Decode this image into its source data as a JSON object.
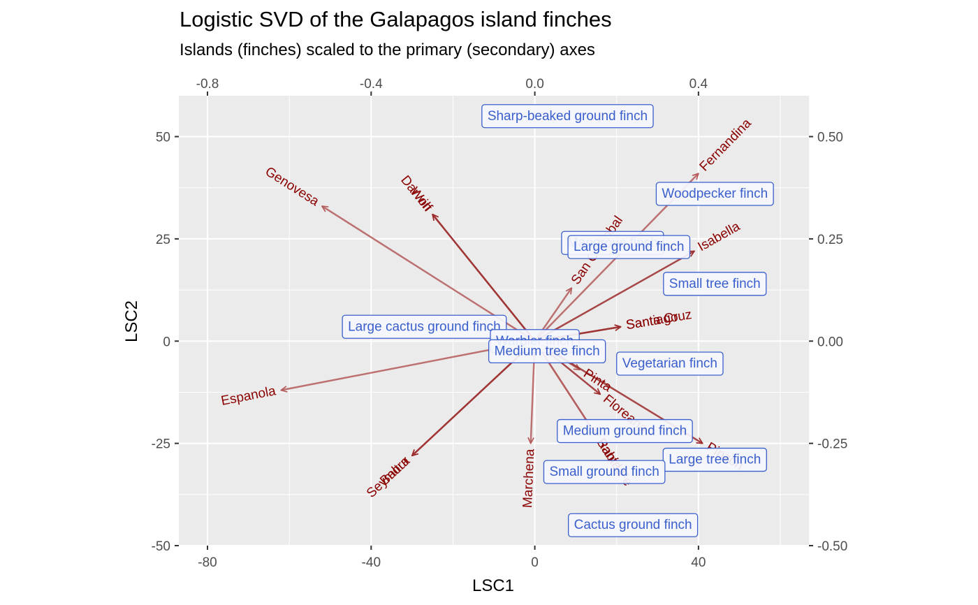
{
  "chart_data": {
    "type": "scatter",
    "title": "Logistic SVD of the Galapagos island finches",
    "subtitle": "Islands (finches) scaled to the primary (secondary) axes",
    "xlabel": "LSC1",
    "ylabel": "LSC2",
    "xlim": [
      -87,
      67
    ],
    "ylim": [
      -50,
      60
    ],
    "x_ticks": [
      "-80",
      "-40",
      "0",
      "40"
    ],
    "y_ticks": [
      "-50",
      "-25",
      "0",
      "25",
      "50"
    ],
    "x2_ticks": [
      "-0.8",
      "-0.4",
      "0.0",
      "0.4"
    ],
    "y2_ticks": [
      "-0.50",
      "-0.25",
      "0.00",
      "0.25",
      "0.50"
    ],
    "grid": true,
    "islands": [
      {
        "name": "Fernandina",
        "x": 40,
        "y": 41
      },
      {
        "name": "Isabella",
        "x": 39,
        "y": 22
      },
      {
        "name": "San Cristobal",
        "x": 9,
        "y": 13
      },
      {
        "name": "Santiago",
        "x": 21,
        "y": 3.5
      },
      {
        "name": "Santa Cruz",
        "x": 21,
        "y": 3.5
      },
      {
        "name": "Genovesa",
        "x": -52,
        "y": 33
      },
      {
        "name": "Darwin",
        "x": -25,
        "y": 31
      },
      {
        "name": "Wolf",
        "x": -25,
        "y": 31
      },
      {
        "name": "Espanola",
        "x": -62,
        "y": -12
      },
      {
        "name": "Baltra",
        "x": -30,
        "y": -28
      },
      {
        "name": "Seymour",
        "x": -30,
        "y": -28
      },
      {
        "name": "Marchena",
        "x": -1,
        "y": -25
      },
      {
        "name": "Pinta",
        "x": 11,
        "y": -7
      },
      {
        "name": "Floreana",
        "x": 16,
        "y": -13
      },
      {
        "name": "Rabida",
        "x": 15,
        "y": -23
      },
      {
        "name": "Santa Fe",
        "x": 15,
        "y": -23
      },
      {
        "name": "Pinzon",
        "x": 41,
        "y": -25
      }
    ],
    "finches": [
      {
        "name": "Sharp-beaked ground finch",
        "x": 8,
        "y": 55
      },
      {
        "name": "Woodpecker finch",
        "x": 44,
        "y": 36
      },
      {
        "name": "Mangrove finch",
        "x": 19,
        "y": 24
      },
      {
        "name": "Large ground finch",
        "x": 23,
        "y": 23
      },
      {
        "name": "Small tree finch",
        "x": 44,
        "y": 14
      },
      {
        "name": "Large cactus ground finch",
        "x": -27,
        "y": 3.5
      },
      {
        "name": "Warbler finch",
        "x": 0,
        "y": 0
      },
      {
        "name": "Medium tree finch",
        "x": 3,
        "y": -2.5
      },
      {
        "name": "Vegetarian finch",
        "x": 33,
        "y": -5.5
      },
      {
        "name": "Medium ground finch",
        "x": 22,
        "y": -22
      },
      {
        "name": "Large tree finch",
        "x": 44,
        "y": -29
      },
      {
        "name": "Small ground finch",
        "x": 17,
        "y": -32
      },
      {
        "name": "Cactus ground finch",
        "x": 24,
        "y": -45
      }
    ]
  }
}
